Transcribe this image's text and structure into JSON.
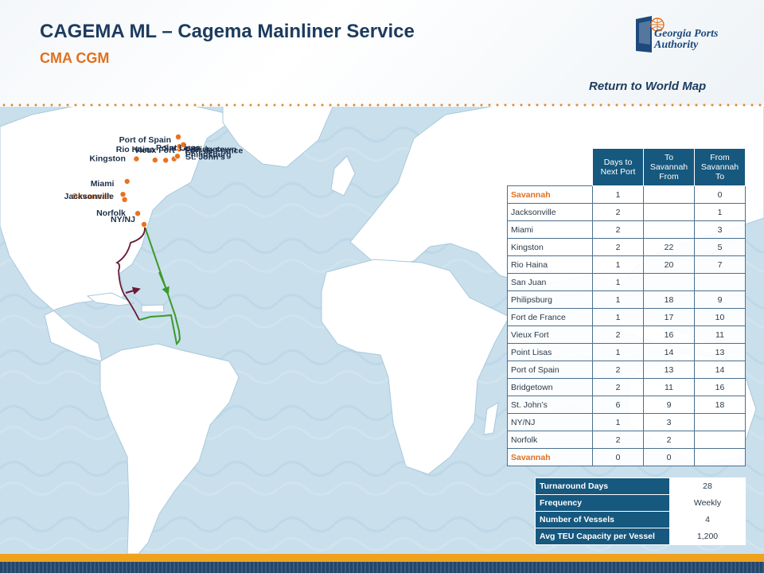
{
  "header": {
    "title": "CAGEMA ML – Cagema Mainliner Service",
    "subtitle": "CMA CGM",
    "logo_text": "Georgia Ports\nAuthority",
    "return_link": "Return to World Map"
  },
  "colors": {
    "title": "#1c3b5e",
    "accent": "#e0701e",
    "header_cell": "#16587e",
    "ocean": "#c9dfec",
    "land": "#ffffff",
    "route_north": "#6a1a36",
    "route_south": "#3a9a2a"
  },
  "map": {
    "ports": [
      {
        "name": "NY/NJ",
        "lon": -74.0,
        "lat": 40.7
      },
      {
        "name": "Norfolk",
        "lon": -76.3,
        "lat": 36.9
      },
      {
        "name": "Savannah",
        "lon": -81.1,
        "lat": 32.1
      },
      {
        "name": "Jacksonville",
        "lon": -81.7,
        "lat": 30.3
      },
      {
        "name": "Miami",
        "lon": -80.2,
        "lat": 25.8
      },
      {
        "name": "Rio Haina",
        "lon": -70.0,
        "lat": 18.4
      },
      {
        "name": "Kingston",
        "lon": -76.8,
        "lat": 18.0
      },
      {
        "name": "San Juan",
        "lon": -66.1,
        "lat": 18.5
      },
      {
        "name": "Philipsburg",
        "lon": -63.0,
        "lat": 18.0
      },
      {
        "name": "St. John’s",
        "lon": -61.8,
        "lat": 17.1
      },
      {
        "name": "Fort de France",
        "lon": -61.1,
        "lat": 14.6
      },
      {
        "name": "Vieux Fort",
        "lon": -61.0,
        "lat": 13.7
      },
      {
        "name": "Bridgetown",
        "lon": -59.6,
        "lat": 13.1
      },
      {
        "name": "Port of Spain",
        "lon": -61.5,
        "lat": 10.7
      },
      {
        "name": "Point Lisas",
        "lon": -61.5,
        "lat": 10.4
      }
    ]
  },
  "schedule": {
    "headers": [
      "Days to Next Port",
      "To Savannah From",
      "From Savannah To"
    ],
    "rows": [
      {
        "port": "Savannah",
        "days": "1",
        "to": "",
        "from": "0",
        "home": true
      },
      {
        "port": "Jacksonville",
        "days": "2",
        "to": "",
        "from": "1"
      },
      {
        "port": "Miami",
        "days": "2",
        "to": "",
        "from": "3"
      },
      {
        "port": "Kingston",
        "days": "2",
        "to": "22",
        "from": "5"
      },
      {
        "port": "Rio Haina",
        "days": "1",
        "to": "20",
        "from": "7"
      },
      {
        "port": "San Juan",
        "days": "1",
        "to": "",
        "from": ""
      },
      {
        "port": "Philipsburg",
        "days": "1",
        "to": "18",
        "from": "9"
      },
      {
        "port": "Fort de France",
        "days": "1",
        "to": "17",
        "from": "10"
      },
      {
        "port": "Vieux Fort",
        "days": "2",
        "to": "16",
        "from": "11"
      },
      {
        "port": "Point Lisas",
        "days": "1",
        "to": "14",
        "from": "13"
      },
      {
        "port": "Port of Spain",
        "days": "2",
        "to": "13",
        "from": "14"
      },
      {
        "port": "Bridgetown",
        "days": "2",
        "to": "11",
        "from": "16"
      },
      {
        "port": "St. John’s",
        "days": "6",
        "to": "9",
        "from": "18"
      },
      {
        "port": "NY/NJ",
        "days": "1",
        "to": "3",
        "from": ""
      },
      {
        "port": "Norfolk",
        "days": "2",
        "to": "2",
        "from": ""
      },
      {
        "port": "Savannah",
        "days": "0",
        "to": "0",
        "from": "",
        "home": true
      }
    ]
  },
  "summary": [
    {
      "label": "Turnaround Days",
      "value": "28"
    },
    {
      "label": "Frequency",
      "value": "Weekly"
    },
    {
      "label": "Number of Vessels",
      "value": "4"
    },
    {
      "label": "Avg TEU Capacity per Vessel",
      "value": "1,200"
    }
  ]
}
